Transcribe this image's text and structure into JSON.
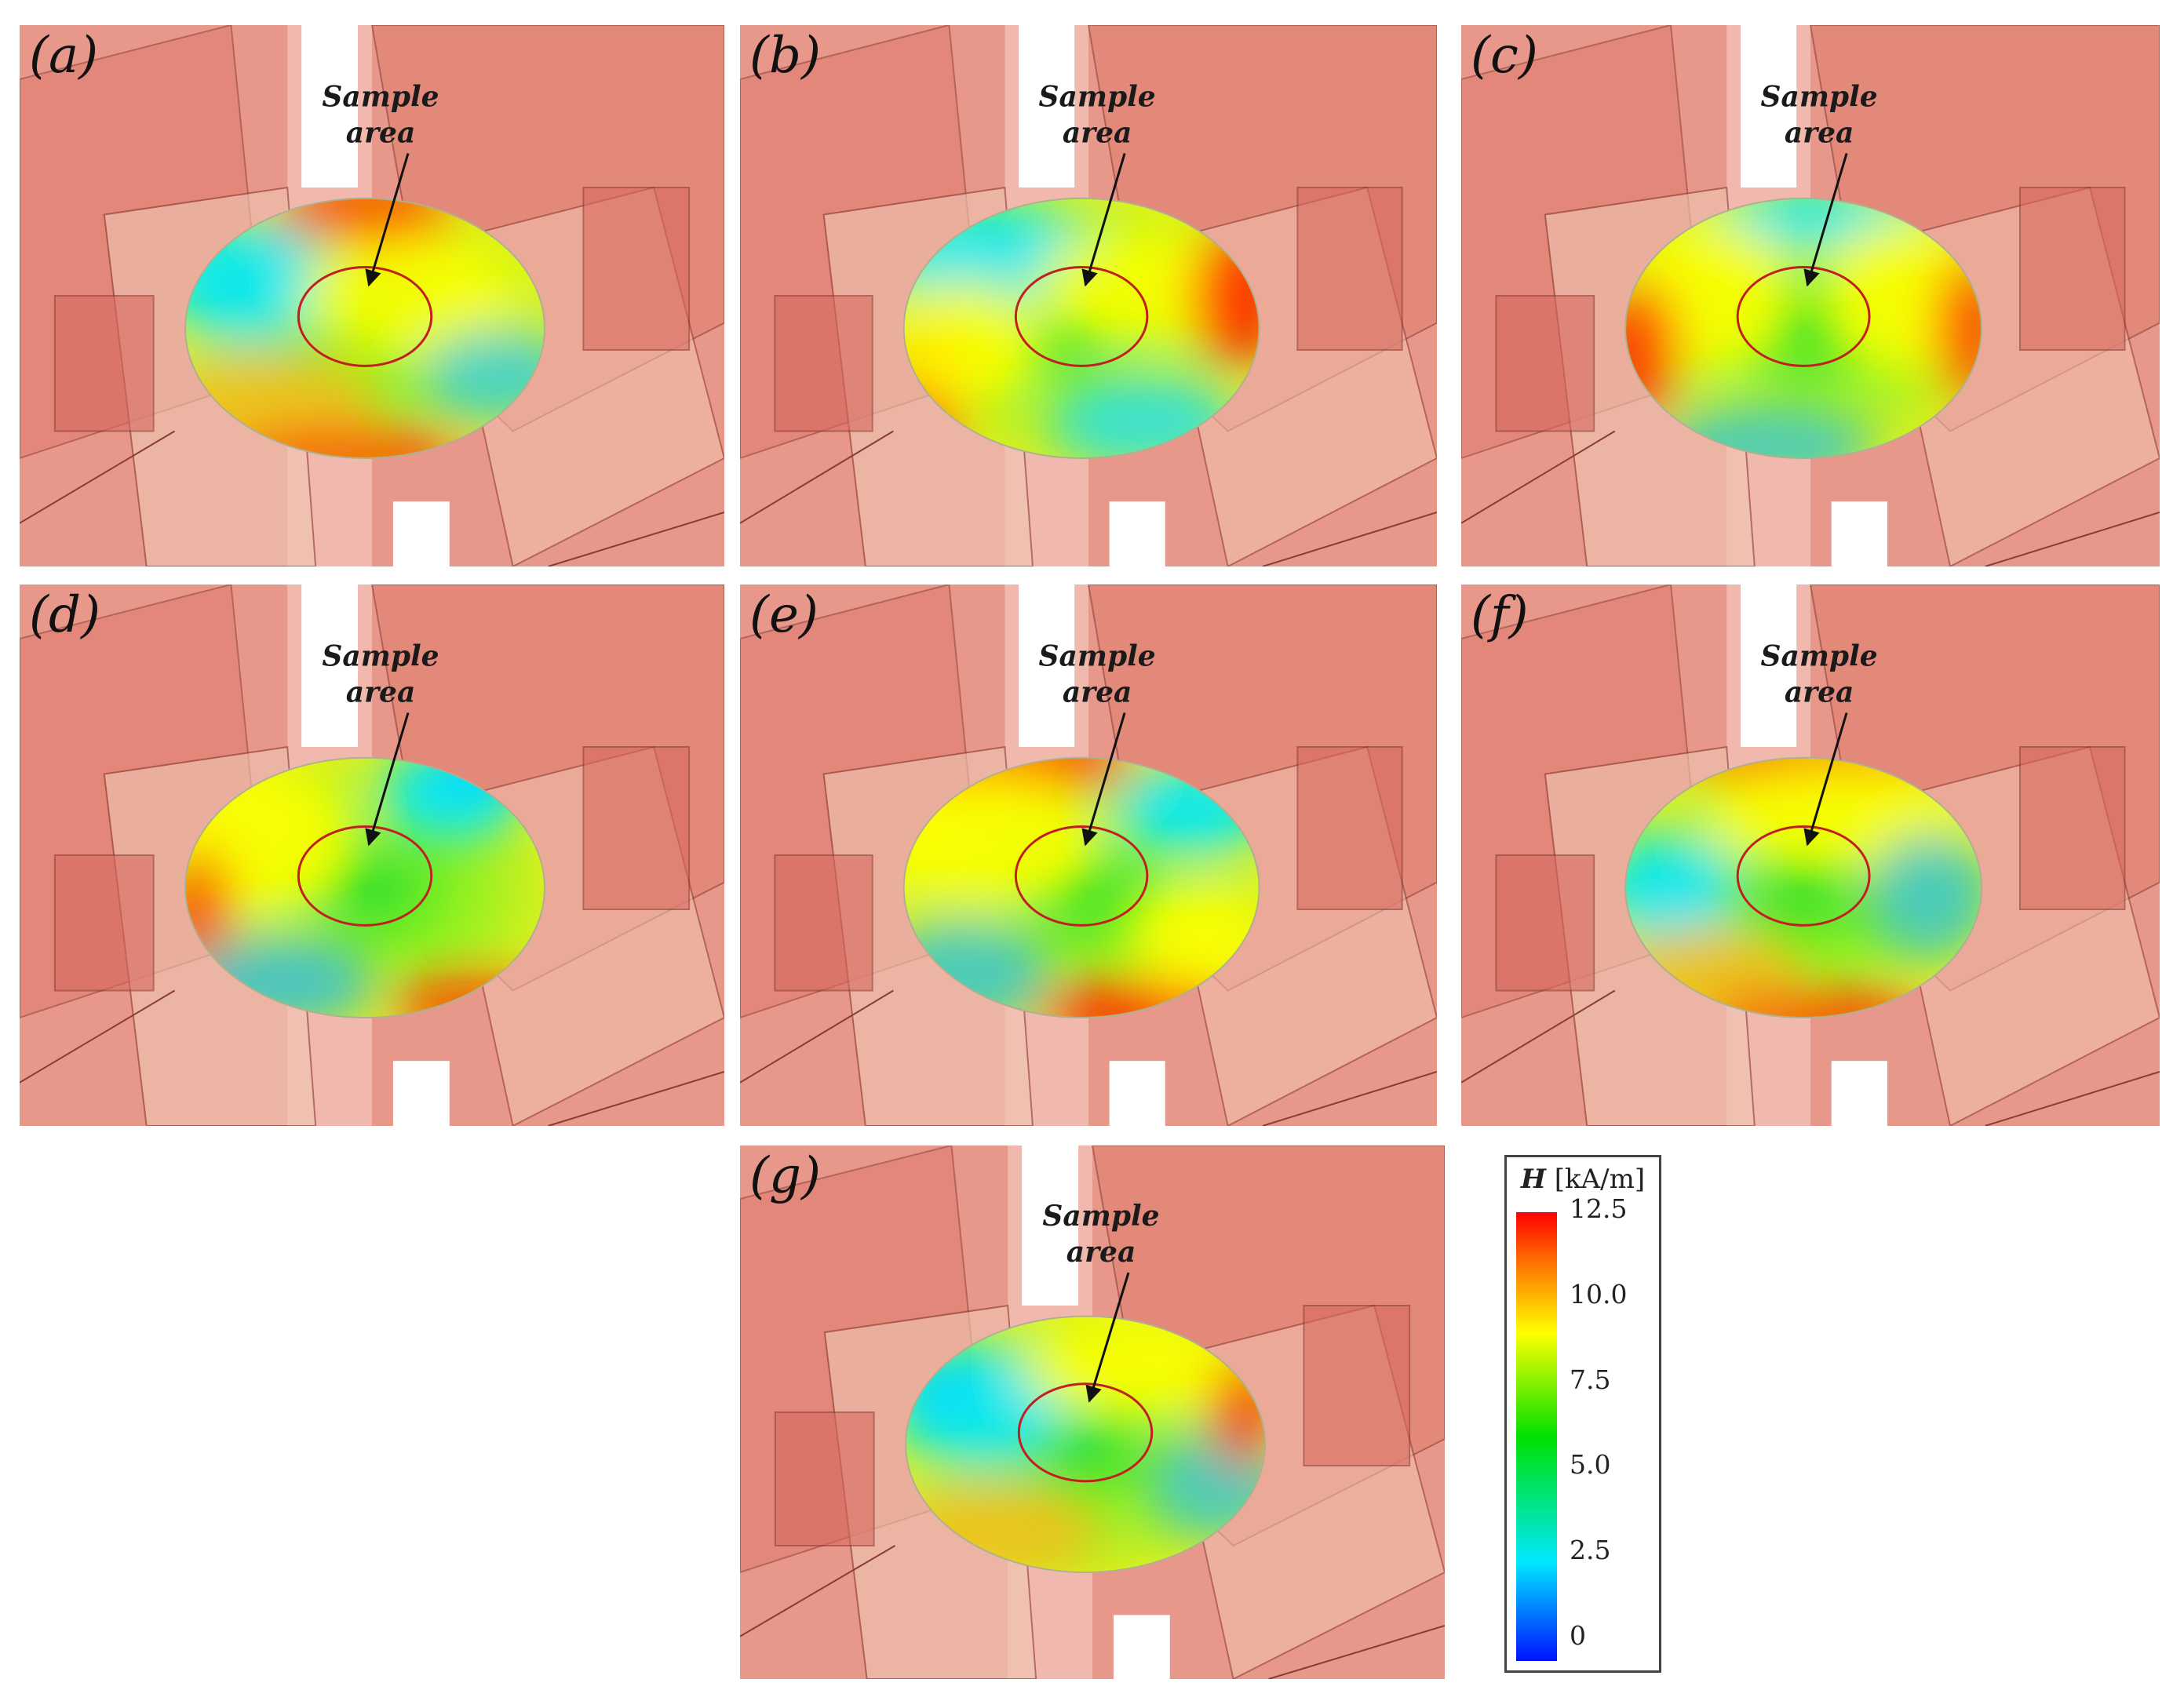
{
  "panels": [
    {
      "label": "(a)",
      "annotation_line1": "Sample",
      "annotation_line2": "area"
    },
    {
      "label": "(b)",
      "annotation_line1": "Sample",
      "annotation_line2": "area"
    },
    {
      "label": "(c)",
      "annotation_line1": "Sample",
      "annotation_line2": "area"
    },
    {
      "label": "(d)",
      "annotation_line1": "Sample",
      "annotation_line2": "area"
    },
    {
      "label": "(e)",
      "annotation_line1": "Sample",
      "annotation_line2": "area"
    },
    {
      "label": "(f)",
      "annotation_line1": "Sample",
      "annotation_line2": "area"
    },
    {
      "label": "(g)",
      "annotation_line1": "Sample",
      "annotation_line2": "area"
    }
  ],
  "colorbar": {
    "title_symbol": "H",
    "title_unit": "[kA/m]",
    "ticks": [
      "12.5",
      "10.0",
      "7.5",
      "5.0",
      "2.5",
      "0"
    ],
    "min": 0,
    "max": 12.5,
    "colors": {
      "low": "#0010ff",
      "mid_low": "#00e8ff",
      "mid": "#00e000",
      "mid_high": "#ffff00",
      "high": "#ff0000"
    }
  }
}
